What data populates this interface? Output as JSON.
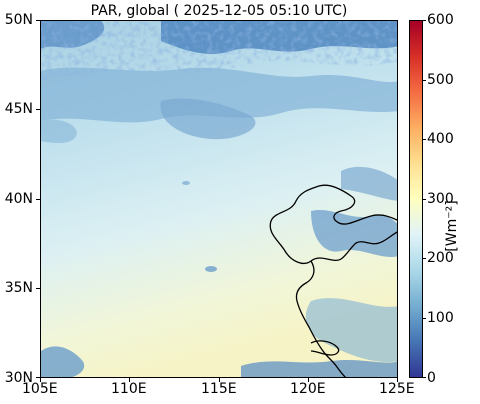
{
  "title": "PAR, global ( 2025-12-05 05:10 UTC)",
  "map": {
    "lon_range": [
      105,
      125
    ],
    "lat_range": [
      30,
      50
    ],
    "lon_ticks": [
      "105E",
      "110E",
      "115E",
      "120E",
      "125E"
    ],
    "lat_ticks": [
      "50N",
      "45N",
      "40N",
      "35N",
      "30N"
    ]
  },
  "colorbar": {
    "unit": "[Wm⁻²]",
    "range": [
      0,
      600
    ],
    "ticks": [
      "600",
      "500",
      "400",
      "300",
      "200",
      "100",
      "0"
    ],
    "colormap": [
      "#313695",
      "#4575b4",
      "#74add1",
      "#abd9e9",
      "#e0f3f8",
      "#ffffbf",
      "#fee090",
      "#fdae61",
      "#f46d43",
      "#d73027",
      "#a50026"
    ]
  }
}
